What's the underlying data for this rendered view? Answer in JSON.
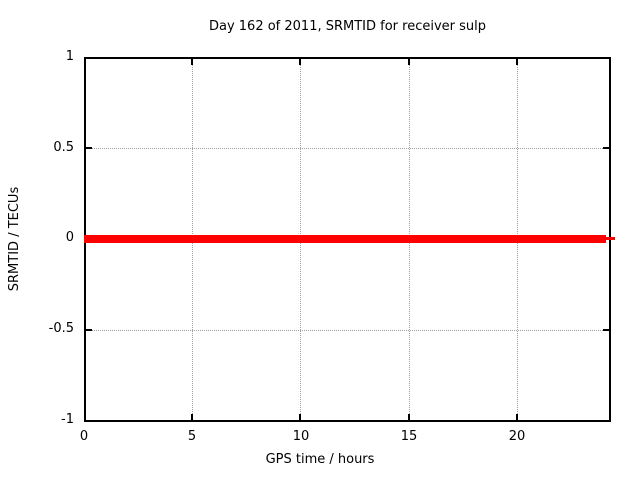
{
  "chart_data": {
    "type": "line",
    "title": "Day 162 of 2011, SRMTID for receiver sulp",
    "xlabel": "GPS time / hours",
    "ylabel": "SRMTID / TECUs",
    "xlim": [
      0,
      24.25
    ],
    "ylim": [
      -1,
      1
    ],
    "x_ticks": [
      0,
      5,
      10,
      15,
      20
    ],
    "x_tick_labels": [
      "0",
      "5",
      "10",
      "15",
      "20"
    ],
    "y_ticks": [
      1,
      0.5,
      0,
      -0.5,
      -1
    ],
    "y_tick_labels": [
      "1",
      "0.5",
      "0",
      "-0.5",
      "-1"
    ],
    "grid": true,
    "legend": "none",
    "series": [
      {
        "name": "SRMTID",
        "color": "#ff0000",
        "style": "thick constant horizontal line",
        "x": [
          0,
          24.2
        ],
        "y": [
          0,
          0
        ]
      }
    ],
    "colors": {
      "background": "#ffffff",
      "axis_border": "#000000",
      "grid": "#9e9e9e",
      "text": "#000000",
      "series": "#ff0000"
    }
  }
}
